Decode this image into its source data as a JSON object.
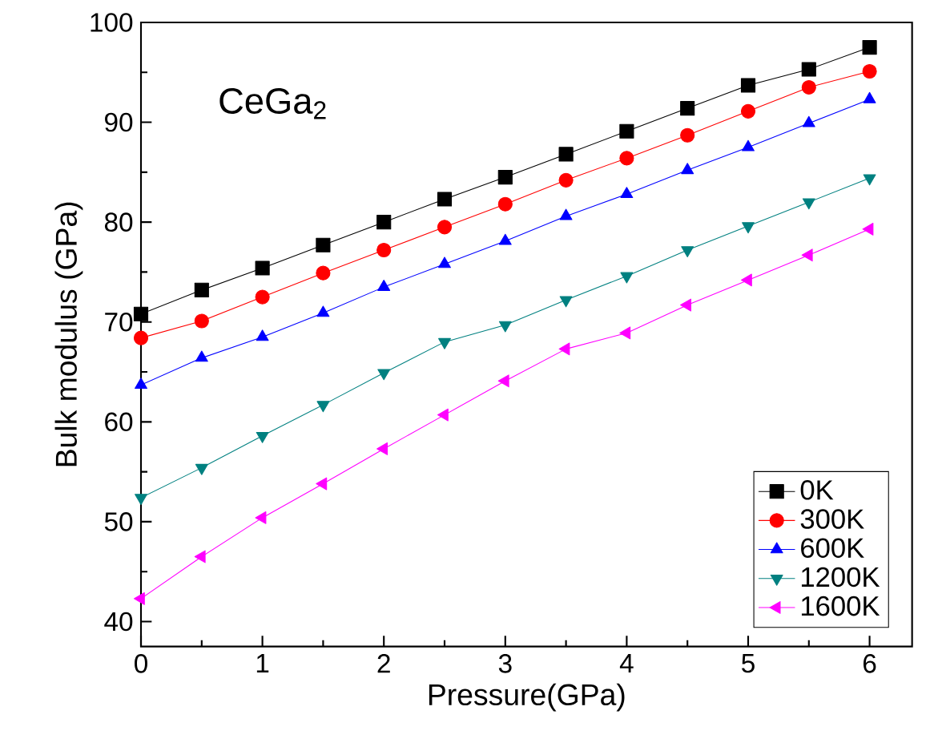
{
  "chart_data": {
    "type": "line",
    "xlabel": "Pressure(GPa)",
    "ylabel": "Bulk modulus (GPa)",
    "annotations": [
      "CeGa$_{2}$"
    ],
    "x": [
      0,
      0.5,
      1,
      1.5,
      2,
      2.5,
      3,
      3.5,
      4,
      4.5,
      5,
      5.5,
      6
    ],
    "series": [
      {
        "name": "0K",
        "color": "#000000",
        "marker": "square",
        "values": [
          70.8,
          73.2,
          75.4,
          77.7,
          80.0,
          82.3,
          84.5,
          86.8,
          89.1,
          91.4,
          93.7,
          95.3,
          97.5
        ]
      },
      {
        "name": "300K",
        "color": "#ff0000",
        "marker": "circle",
        "values": [
          68.4,
          70.1,
          72.5,
          74.9,
          77.2,
          79.5,
          81.8,
          84.2,
          86.4,
          88.7,
          91.1,
          93.5,
          95.1
        ]
      },
      {
        "name": "600K",
        "color": "#0000ff",
        "marker": "triangle",
        "values": [
          63.7,
          66.4,
          68.5,
          70.9,
          73.5,
          75.8,
          78.1,
          80.6,
          82.8,
          85.2,
          87.5,
          89.9,
          92.3
        ]
      },
      {
        "name": "1200K",
        "color": "#008080",
        "marker": "triangle-down",
        "values": [
          52.4,
          55.4,
          58.6,
          61.7,
          64.9,
          68.0,
          69.7,
          72.2,
          74.6,
          77.2,
          79.6,
          82.0,
          84.4
        ]
      },
      {
        "name": "1600K",
        "color": "#ff00ff",
        "marker": "triangle-left",
        "values": [
          42.3,
          46.5,
          50.4,
          53.8,
          57.3,
          60.7,
          64.1,
          67.3,
          68.9,
          71.7,
          74.2,
          76.7,
          79.3
        ]
      }
    ],
    "xlim": [
      0,
      6.35
    ],
    "ylim": [
      37.5,
      100
    ],
    "xticks": [
      0,
      1,
      2,
      3,
      4,
      5,
      6
    ],
    "yticks": [
      40,
      50,
      60,
      70,
      80,
      90,
      100
    ],
    "legend": "bottom right",
    "grid": false,
    "line_style": "solid"
  }
}
